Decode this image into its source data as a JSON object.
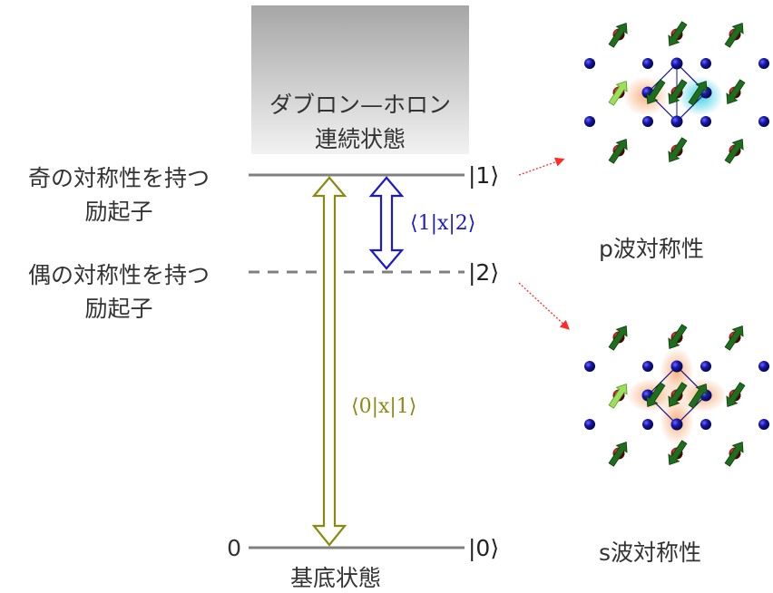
{
  "continuum": {
    "line1": "ダブロン—ホロン",
    "line2": "連続状態"
  },
  "levels": {
    "odd": {
      "label_line1": "奇の対称性を持つ",
      "label_line2": "励起子",
      "ket": "|1⟩"
    },
    "even": {
      "label_line1": "偶の対称性を持つ",
      "label_line2": "励起子",
      "ket": "|2⟩"
    },
    "ground": {
      "zero": "0",
      "ket": "|0⟩",
      "caption": "基底状態"
    }
  },
  "transitions": {
    "blue": {
      "label": "⟨1|x|2⟩",
      "color": "#1a1acc"
    },
    "olive": {
      "label": "⟨0|x|1⟩",
      "color": "#8a8a10"
    }
  },
  "panels": {
    "p": {
      "caption_letter": "p",
      "caption_rest": "波対称性"
    },
    "s": {
      "caption_letter": "s",
      "caption_rest": "波対称性"
    }
  },
  "colors": {
    "level_line": "#808080",
    "pointer": "#ff2a2a",
    "atom_blue": "#10108c",
    "atom_red": "#8c1010",
    "spin_green": "#1e6e1e",
    "spin_light": "#9be05a",
    "cloud_orange": "#f5a56a",
    "cloud_cyan": "#3fd0e0"
  }
}
